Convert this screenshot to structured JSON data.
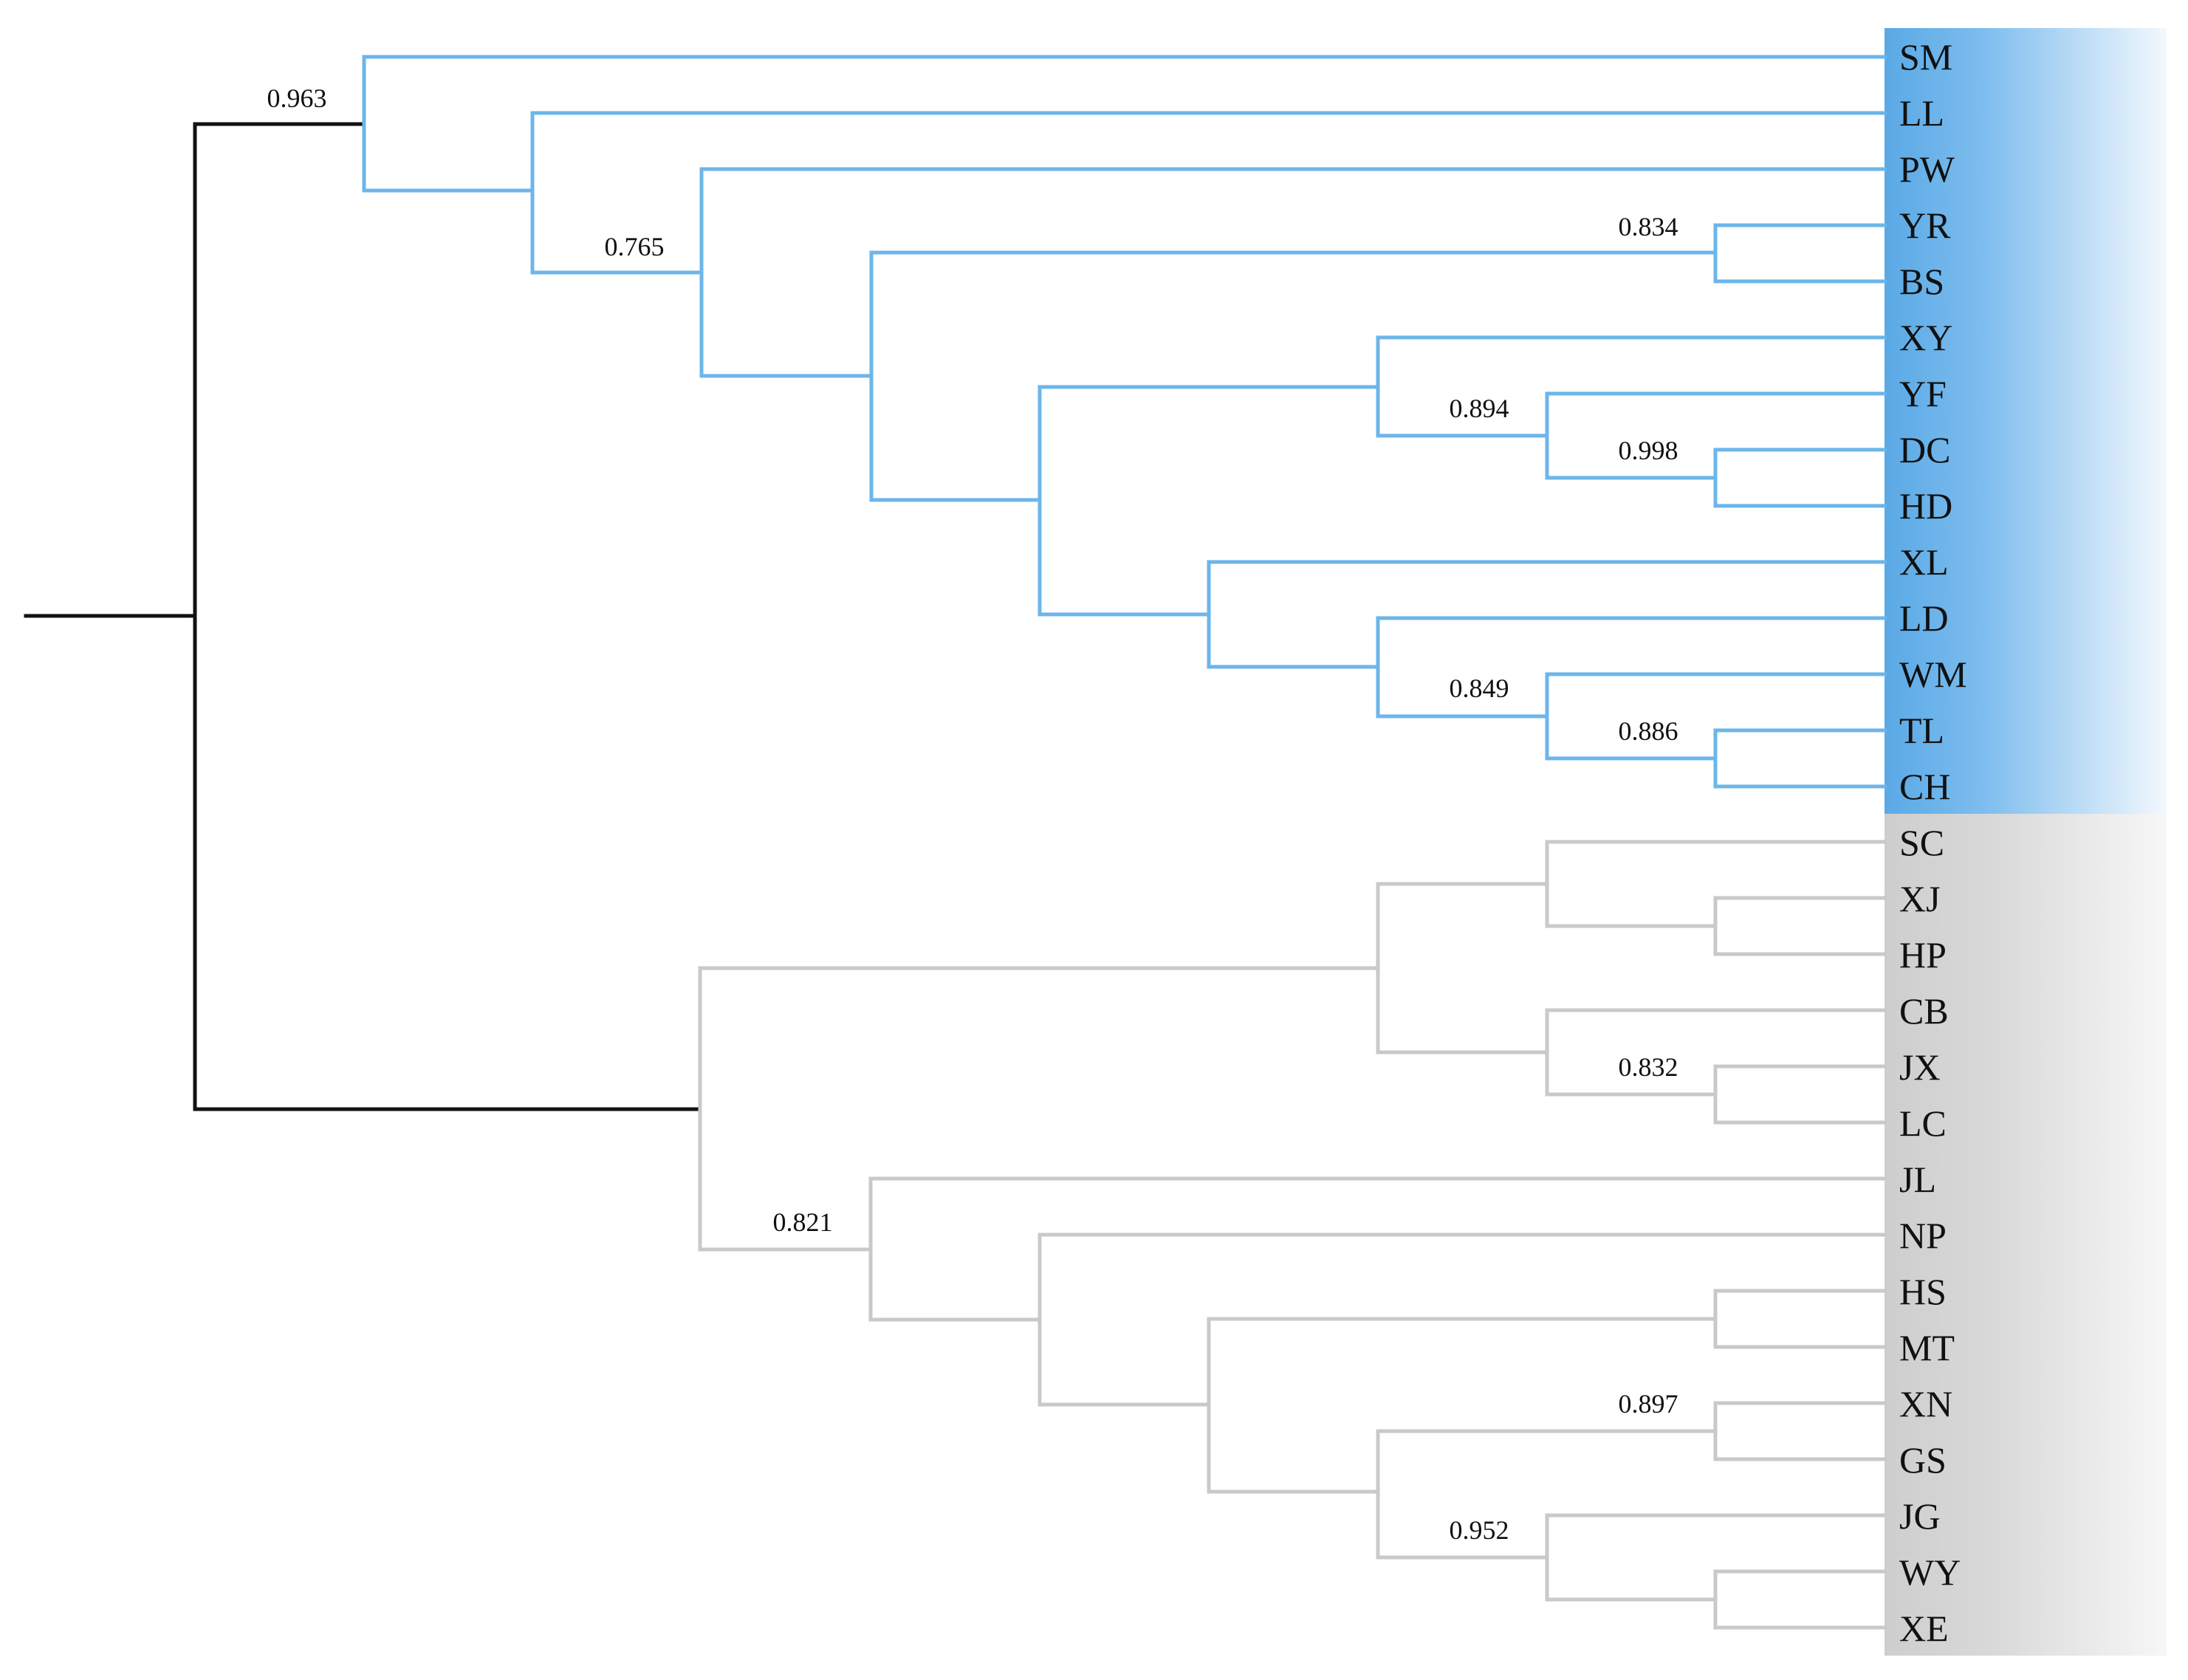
{
  "tree": {
    "type": "phylogenetic-dendrogram",
    "clades": [
      {
        "name": "blue-clade",
        "color": "#6CB6EA",
        "leaves": [
          "SM",
          "LL",
          "PW",
          "YR",
          "BS",
          "XY",
          "YF",
          "DC",
          "HD",
          "XL",
          "LD",
          "WM",
          "TL",
          "CH"
        ]
      },
      {
        "name": "grey-clade",
        "color": "#C9C9C9",
        "leaves": [
          "SC",
          "XJ",
          "HP",
          "CB",
          "JX",
          "LC",
          "JL",
          "NP",
          "HS",
          "MT",
          "XN",
          "GS",
          "JG",
          "WY",
          "XE"
        ]
      }
    ],
    "root_branch_color": "#111111",
    "bootstrap_values": {
      "root_blue": "0.963",
      "pw_node": "0.765",
      "yr_bs": "0.834",
      "yf_dc_hd": "0.894",
      "dc_hd": "0.998",
      "wm_tl_ch": "0.849",
      "tl_ch": "0.886",
      "jx_lc": "0.832",
      "jl_node": "0.821",
      "xn_gs": "0.897",
      "jg_wy_xe": "0.952"
    }
  },
  "leaves": [
    "SM",
    "LL",
    "PW",
    "YR",
    "BS",
    "XY",
    "YF",
    "DC",
    "HD",
    "XL",
    "LD",
    "WM",
    "TL",
    "CH",
    "SC",
    "XJ",
    "HP",
    "CB",
    "JX",
    "LC",
    "JL",
    "NP",
    "HS",
    "MT",
    "XN",
    "GS",
    "JG",
    "WY",
    "XE"
  ]
}
